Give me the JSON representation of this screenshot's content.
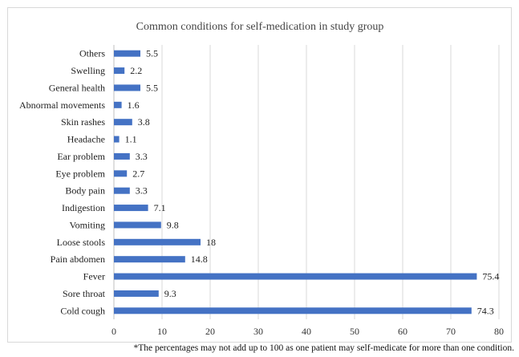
{
  "chart_data": {
    "type": "bar",
    "orientation": "horizontal",
    "title": "Common conditions for self-medication in study group",
    "categories": [
      "Others",
      "Swelling",
      "General health",
      "Abnormal movements",
      "Skin rashes",
      "Headache",
      "Ear problem",
      "Eye problem",
      "Body pain",
      "Indigestion",
      "Vomiting",
      "Loose stools",
      "Pain abdomen",
      "Fever",
      "Sore throat",
      "Cold cough"
    ],
    "values": [
      5.5,
      2.2,
      5.5,
      1.6,
      3.8,
      1.1,
      3.3,
      2.7,
      3.3,
      7.1,
      9.8,
      18,
      14.8,
      75.4,
      9.3,
      74.3
    ],
    "value_labels": [
      "5.5",
      "2.2",
      "5.5",
      "1.6",
      "3.8",
      "1.1",
      "3.3",
      "2.7",
      "3.3",
      "7.1",
      "9.8",
      "18",
      "14.8",
      "75.4",
      "9.3",
      "74.3"
    ],
    "x_ticks": [
      "0",
      "10",
      "20",
      "30",
      "40",
      "50",
      "60",
      "70",
      "80"
    ],
    "xlim": [
      0,
      80
    ],
    "xlabel": "",
    "ylabel": "",
    "grid": "vertical",
    "legend": "none",
    "bar_color": "#4472c4"
  },
  "footnote": "*The percentages may not add up to 100 as one patient may self-medicate for more than one condition."
}
